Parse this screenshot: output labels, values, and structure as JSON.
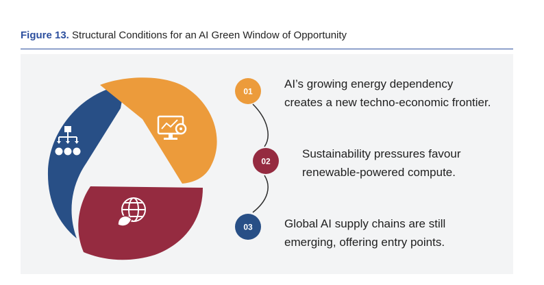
{
  "figure": {
    "label": "Figure 13.",
    "title": "Structural Conditions for an AI Green Window of Opportunity"
  },
  "colors": {
    "accent": "#2c4f9e",
    "blue_segment": "#284f86",
    "orange_segment": "#ec9b3b",
    "red_segment": "#952b40"
  },
  "steps": [
    {
      "number": "01",
      "color": "#ec9b3b",
      "line1": "AI’s growing energy dependency",
      "line2": "creates a new techno-economic frontier.",
      "icon": "monitor-analytics-icon"
    },
    {
      "number": "02",
      "color": "#952b40",
      "line1": "Sustainability pressures favour",
      "line2": "renewable-powered compute.",
      "icon": "globe-leaf-icon"
    },
    {
      "number": "03",
      "color": "#284f86",
      "line1": "Global AI supply chains are still",
      "line2": "emerging, offering entry points.",
      "icon": "network-hierarchy-icon"
    }
  ]
}
